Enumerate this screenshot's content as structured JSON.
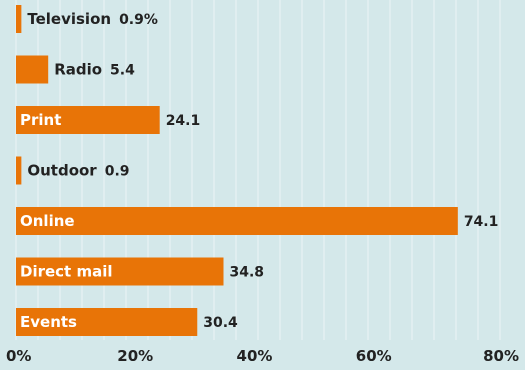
{
  "chart_data": {
    "type": "bar",
    "orientation": "horizontal",
    "categories": [
      "Television",
      "Radio",
      "Print",
      "Outdoor",
      "Online",
      "Direct mail",
      "Events"
    ],
    "values": [
      0.9,
      5.4,
      24.1,
      0.9,
      74.1,
      34.8,
      30.4
    ],
    "value_labels": [
      "0.9%",
      "5.4",
      "24.1",
      "0.9",
      "74.1",
      "34.8",
      "30.4"
    ],
    "x_ticks": [
      "0%",
      "20%",
      "40%",
      "60%",
      "80%"
    ],
    "xlim": [
      0,
      80
    ],
    "grid": true,
    "colors": {
      "bar": "#e87407",
      "background": "#d4e8ea",
      "grid": "#ffffff",
      "text_on_bar": "#ffffff",
      "text": "#222222"
    }
  }
}
